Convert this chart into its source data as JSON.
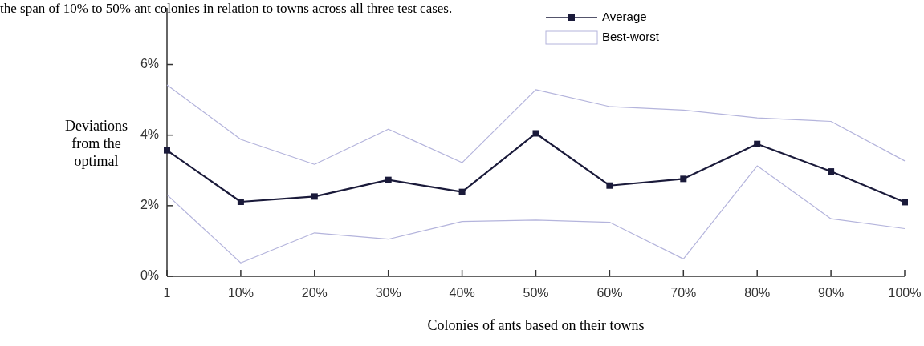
{
  "chart_data": {
    "type": "line",
    "annotations": [
      "the span of 10% to 50% ant colonies in relation to towns across all three test cases."
    ],
    "xlabel": "Colonies of ants based on their towns",
    "ylabel": "Deviations from the optimal",
    "categories": [
      "1",
      "10%",
      "20%",
      "30%",
      "40%",
      "50%",
      "60%",
      "70%",
      "80%",
      "90%",
      "100%"
    ],
    "series": [
      {
        "name": "Average",
        "color": "#1a1a3a",
        "marker": "square",
        "values": [
          3.57,
          2.11,
          2.26,
          2.73,
          2.39,
          4.05,
          2.57,
          2.76,
          3.75,
          2.97,
          2.1
        ]
      },
      {
        "name": "Best-worst",
        "color": "#b4b4dc",
        "marker": "none",
        "values": [
          5.42,
          3.88,
          3.17,
          4.17,
          3.22,
          5.29,
          4.81,
          4.71,
          4.49,
          4.39,
          3.27
        ]
      },
      {
        "color": "#b4b4dc",
        "marker": "none",
        "values": [
          2.31,
          0.38,
          1.23,
          1.05,
          1.55,
          1.59,
          1.53,
          0.49,
          3.13,
          1.63,
          1.35
        ]
      }
    ],
    "ylim": [
      0,
      7.6
    ],
    "yticks": [
      {
        "value": 0,
        "label": "0%"
      },
      {
        "value": 2,
        "label": "2%"
      },
      {
        "value": 4,
        "label": "4%"
      },
      {
        "value": 6,
        "label": "6%"
      }
    ],
    "grid": false,
    "legend": "top"
  }
}
